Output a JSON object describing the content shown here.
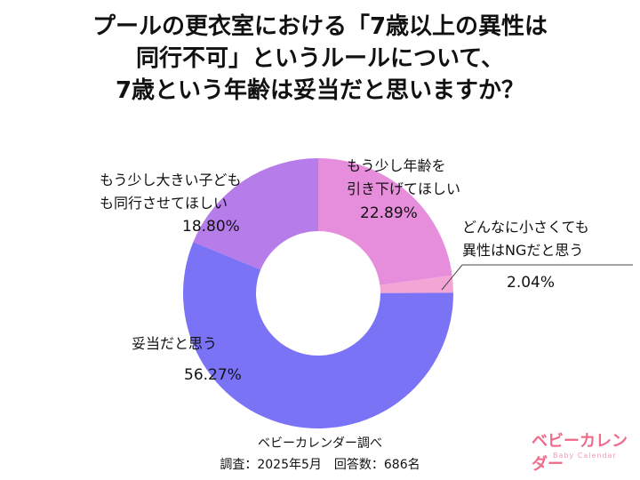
{
  "chart_data": {
    "type": "donut",
    "title": "プールの更衣室における「7歳以上の異性は\n同行不可」というルールについて、\n7歳という年齢は妥当だと思いますか？",
    "categories": [
      "もう少し年齢を\n引き下げてほしい",
      "どんなに小さくても\n異性はNGだと思う",
      "妥当だと思う",
      "もう少し大きい子ども\nも同行させてほしい"
    ],
    "values": [
      22.89,
      2.04,
      56.27,
      18.8
    ],
    "value_labels": [
      "22.89%",
      "2.04%",
      "56.27%",
      "18.80%"
    ],
    "colors": [
      "#e68ddc",
      "#f3a5d6",
      "#7b73f6",
      "#b67cea"
    ],
    "source": "ベビーカレンダー調べ",
    "note": "調査：2025年5月　回答数：686名",
    "logo": "ベビーカレンダー",
    "logo_sub": "Baby Calendar"
  }
}
